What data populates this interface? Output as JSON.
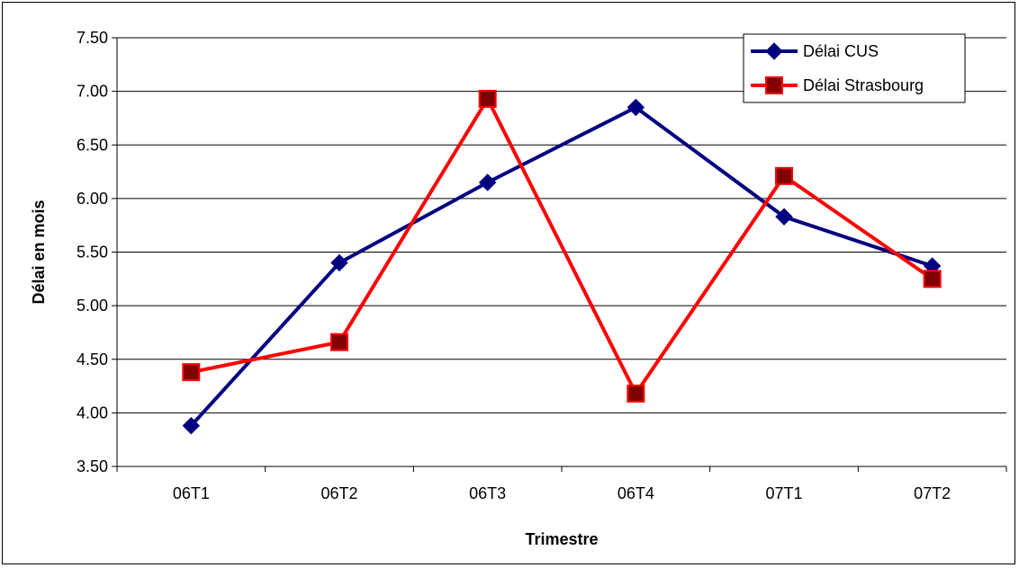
{
  "chart_data": {
    "type": "line",
    "categories": [
      "06T1",
      "06T2",
      "06T3",
      "06T4",
      "07T1",
      "07T2"
    ],
    "series": [
      {
        "name": "Délai CUS",
        "values": [
          3.88,
          5.4,
          6.15,
          6.85,
          5.83,
          5.37
        ],
        "color": "#000080",
        "marker": "diamond"
      },
      {
        "name": "Délai Strasbourg",
        "values": [
          4.38,
          4.66,
          6.93,
          4.18,
          6.21,
          5.25
        ],
        "color": "#FF0000",
        "marker_fill": "#800000",
        "marker": "square"
      }
    ],
    "xlabel": "Trimestre",
    "ylabel": "Délai en mois",
    "ylim": [
      3.5,
      7.5
    ],
    "y_step": 0.5,
    "y_tick_labels": [
      "3.50",
      "4.00",
      "4.50",
      "5.00",
      "5.50",
      "6.00",
      "6.50",
      "7.00",
      "7.50"
    ],
    "grid": true,
    "legend_position": "top-right"
  }
}
